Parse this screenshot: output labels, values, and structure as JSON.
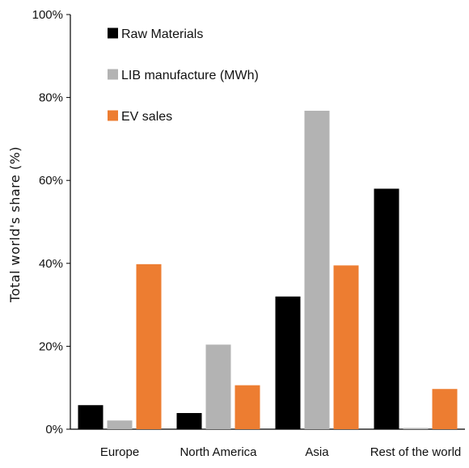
{
  "chart_data": {
    "type": "bar",
    "title": "",
    "xlabel": "",
    "ylabel": "Total world's share (%)",
    "ylim": [
      0,
      100
    ],
    "yticks": [
      "0%",
      "20%",
      "40%",
      "60%",
      "80%",
      "100%"
    ],
    "grid": false,
    "legend_position": "top-left",
    "categories": [
      "Europe",
      "North America",
      "Asia",
      "Rest of the world"
    ],
    "series": [
      {
        "name": "Raw Materials",
        "color": "#000000",
        "values": [
          5.8,
          3.9,
          32.0,
          58.0
        ]
      },
      {
        "name": "LIB manufacture (MWh)",
        "color": "#b3b3b3",
        "values": [
          2.1,
          20.4,
          76.8,
          0.3
        ]
      },
      {
        "name": "EV sales",
        "color": "#ed7d31",
        "values": [
          39.8,
          10.6,
          39.5,
          9.7
        ]
      }
    ]
  }
}
